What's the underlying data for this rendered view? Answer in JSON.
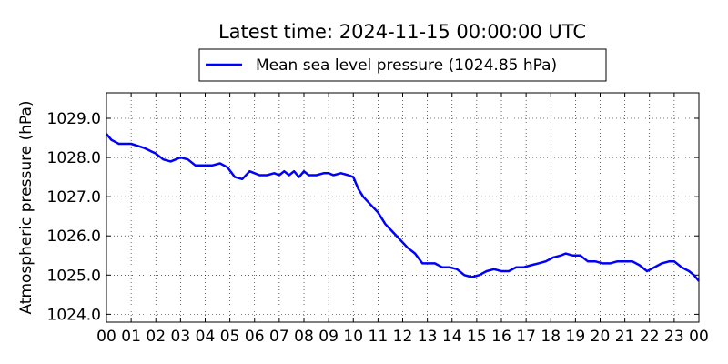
{
  "chart_data": {
    "type": "line",
    "title": "Latest time: 2024-11-15 00:00:00 UTC",
    "ylabel": "Atmospheric pressure (hPa)",
    "xlabel": "",
    "xlim": [
      0,
      24
    ],
    "ylim": [
      1023.8,
      1029.65
    ],
    "grid": true,
    "legend_position": "top-center",
    "x_tick_labels": [
      "00",
      "01",
      "02",
      "03",
      "04",
      "05",
      "06",
      "07",
      "08",
      "09",
      "10",
      "11",
      "12",
      "13",
      "14",
      "15",
      "16",
      "17",
      "18",
      "19",
      "20",
      "21",
      "22",
      "23",
      "00"
    ],
    "y_ticks": [
      1024.0,
      1025.0,
      1026.0,
      1027.0,
      1028.0,
      1029.0
    ],
    "y_tick_labels": [
      "1024.0",
      "1025.0",
      "1026.0",
      "1027.0",
      "1028.0",
      "1029.0"
    ],
    "series": [
      {
        "name": "Mean sea level pressure (1024.85 hPa)",
        "color": "#0000ff",
        "x": [
          0,
          0.2,
          0.5,
          1.0,
          1.5,
          2.0,
          2.3,
          2.6,
          3.0,
          3.3,
          3.6,
          4.0,
          4.3,
          4.6,
          4.9,
          5.2,
          5.5,
          5.8,
          6.2,
          6.5,
          6.8,
          7.0,
          7.2,
          7.4,
          7.6,
          7.8,
          8.0,
          8.2,
          8.5,
          8.8,
          9.0,
          9.2,
          9.5,
          9.8,
          10.0,
          10.2,
          10.4,
          10.7,
          11.0,
          11.3,
          11.6,
          11.9,
          12.2,
          12.5,
          12.8,
          13.0,
          13.3,
          13.6,
          13.9,
          14.2,
          14.5,
          14.8,
          15.1,
          15.4,
          15.7,
          16.0,
          16.3,
          16.6,
          16.9,
          17.2,
          17.5,
          17.8,
          18.1,
          18.4,
          18.6,
          18.9,
          19.2,
          19.5,
          19.8,
          20.1,
          20.4,
          20.7,
          21.0,
          21.3,
          21.6,
          21.9,
          22.2,
          22.5,
          22.8,
          23.0,
          23.3,
          23.6,
          23.8,
          24.0
        ],
        "y": [
          1028.6,
          1028.45,
          1028.35,
          1028.35,
          1028.25,
          1028.1,
          1027.95,
          1027.9,
          1028.0,
          1027.95,
          1027.8,
          1027.8,
          1027.8,
          1027.85,
          1027.75,
          1027.5,
          1027.45,
          1027.65,
          1027.55,
          1027.55,
          1027.6,
          1027.55,
          1027.65,
          1027.55,
          1027.65,
          1027.5,
          1027.65,
          1027.55,
          1027.55,
          1027.6,
          1027.6,
          1027.55,
          1027.6,
          1027.55,
          1027.5,
          1027.2,
          1027.0,
          1026.8,
          1026.6,
          1026.3,
          1026.1,
          1025.9,
          1025.7,
          1025.55,
          1025.3,
          1025.3,
          1025.3,
          1025.2,
          1025.2,
          1025.15,
          1025.0,
          1024.95,
          1025.0,
          1025.1,
          1025.15,
          1025.1,
          1025.1,
          1025.2,
          1025.2,
          1025.25,
          1025.3,
          1025.35,
          1025.45,
          1025.5,
          1025.55,
          1025.5,
          1025.5,
          1025.35,
          1025.35,
          1025.3,
          1025.3,
          1025.35,
          1025.35,
          1025.35,
          1025.25,
          1025.1,
          1025.2,
          1025.3,
          1025.35,
          1025.35,
          1025.2,
          1025.1,
          1025.0,
          1024.85
        ]
      }
    ]
  }
}
